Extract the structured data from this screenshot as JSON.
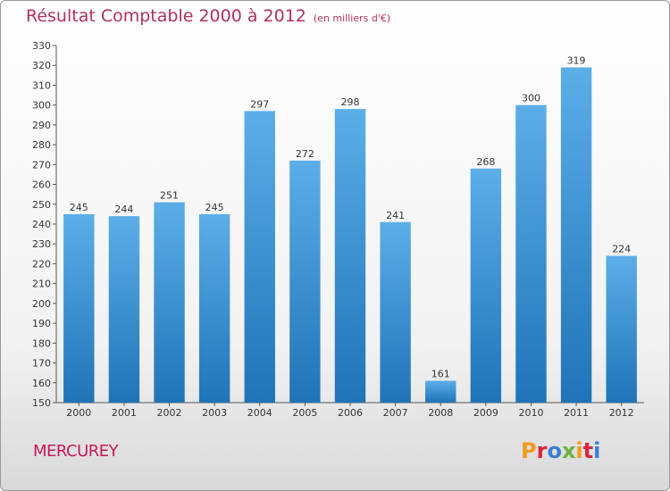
{
  "page": {
    "title": "Résultat Comptable 2000 à 2012",
    "subtitle": "(en milliers d'€)",
    "town": "MERCUREY",
    "logo": "Proxiti"
  },
  "colors": {
    "title": "#b03060",
    "bar_light": "#5caee8",
    "bar_dark": "#1f74b8",
    "logo": [
      "#f29a1b",
      "#d7263d",
      "#3b7dd8",
      "#6cb33f",
      "#f29a1b",
      "#d7263d",
      "#3b7dd8"
    ]
  },
  "chart_data": {
    "type": "bar",
    "categories": [
      "2000",
      "2001",
      "2002",
      "2003",
      "2004",
      "2005",
      "2006",
      "2007",
      "2008",
      "2009",
      "2010",
      "2011",
      "2012"
    ],
    "values": [
      245,
      244,
      251,
      245,
      297,
      272,
      298,
      241,
      161,
      268,
      300,
      319,
      224
    ],
    "title": "Résultat Comptable 2000 à 2012",
    "subtitle": "(en milliers d'€)",
    "xlabel": "",
    "ylabel": "",
    "ylim": [
      150,
      330
    ],
    "yticks": [
      150,
      160,
      170,
      180,
      190,
      200,
      210,
      220,
      230,
      240,
      250,
      260,
      270,
      280,
      290,
      300,
      310,
      320,
      330
    ],
    "grid": false,
    "data_labels": true
  }
}
